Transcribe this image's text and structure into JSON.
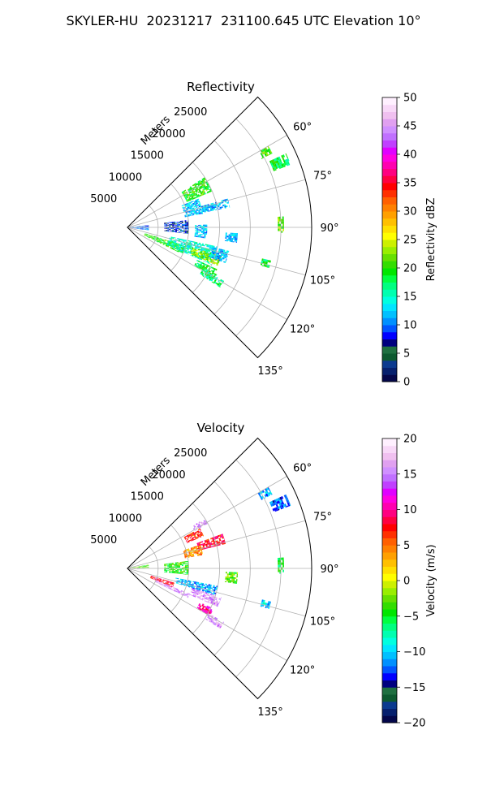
{
  "figure": {
    "suptitle": "SKYLER-HU  20231217  231100.645 UTC Elevation 10°"
  },
  "chart_data": [
    {
      "type": "heatmap",
      "subtype": "polar-sector-radar-ppi",
      "title": "Reflectivity",
      "radial_axis_label": "Meters",
      "radial_ticks": [
        5000,
        10000,
        15000,
        20000,
        25000
      ],
      "radial_tick_labels": [
        "5000",
        "10000",
        "15000",
        "20000",
        "25000"
      ],
      "rlim": [
        0,
        30000
      ],
      "theta_ticks": [
        60,
        75,
        90,
        105,
        120,
        135
      ],
      "theta_tick_labels": [
        "60°",
        "75°",
        "90°",
        "105°",
        "120°",
        "135°"
      ],
      "theta_range": [
        45,
        135
      ],
      "grid": true,
      "colorbar": {
        "label": "Reflectivity dBZ",
        "range": [
          0,
          50
        ],
        "ticks": [
          0,
          5,
          10,
          15,
          20,
          25,
          30,
          35,
          40,
          45,
          50
        ],
        "tick_labels": [
          "0",
          "5",
          "10",
          "15",
          "20",
          "25",
          "30",
          "35",
          "40",
          "45",
          "50"
        ],
        "colors": [
          "#04074a",
          "#06206e",
          "#0b3a8f",
          "#0d5a2f",
          "#1f7040",
          "#00007f",
          "#0000ff",
          "#0055ff",
          "#0090ff",
          "#00c0ff",
          "#00e5ff",
          "#00ffe0",
          "#00ffb0",
          "#00ff80",
          "#00ff40",
          "#00e600",
          "#33dd00",
          "#66e000",
          "#99ee00",
          "#ccf000",
          "#ffff00",
          "#ffe000",
          "#ffc000",
          "#ffa000",
          "#ff8000",
          "#ff6000",
          "#ff3000",
          "#ff0000",
          "#ff0040",
          "#ff0080",
          "#ff00b0",
          "#ff00e0",
          "#e000ff",
          "#c040ff",
          "#c070ff",
          "#d090ff",
          "#e0a0f0",
          "#f0c0f0",
          "#f8d8f8",
          "#fff0ff"
        ]
      },
      "echo_regions": [
        {
          "theta_deg": [
            60,
            63
          ],
          "range_m": [
            24500,
            26500
          ],
          "value": 20
        },
        {
          "theta_deg": [
            65,
            69
          ],
          "range_m": [
            25500,
            28500
          ],
          "value": 18
        },
        {
          "theta_deg": [
            57,
            67
          ],
          "range_m": [
            10500,
            15000
          ],
          "value": 20
        },
        {
          "theta_deg": [
            68,
            80
          ],
          "range_m": [
            9500,
            12500
          ],
          "value": 12
        },
        {
          "theta_deg": [
            74,
            79
          ],
          "range_m": [
            12500,
            17000
          ],
          "value": 12
        },
        {
          "theta_deg": [
            83,
            96
          ],
          "range_m": [
            6000,
            10000
          ],
          "value": 8
        },
        {
          "theta_deg": [
            88,
            98
          ],
          "range_m": [
            11000,
            13000
          ],
          "value": 12
        },
        {
          "theta_deg": [
            93,
            98
          ],
          "range_m": [
            16000,
            18000
          ],
          "value": 12
        },
        {
          "theta_deg": [
            86,
            92
          ],
          "range_m": [
            24500,
            25500
          ],
          "value": 22
        },
        {
          "theta_deg": [
            84,
            98
          ],
          "range_m": [
            0,
            3500
          ],
          "value": 10
        },
        {
          "theta_deg": [
            108,
            116
          ],
          "range_m": [
            3000,
            10000
          ],
          "value": 20
        },
        {
          "theta_deg": [
            102,
            114
          ],
          "range_m": [
            7000,
            15000
          ],
          "value": 15
        },
        {
          "theta_deg": [
            107,
            113
          ],
          "range_m": [
            11000,
            16000
          ],
          "value": 23
        },
        {
          "theta_deg": [
            103,
            110
          ],
          "range_m": [
            14000,
            17000
          ],
          "value": 12
        },
        {
          "theta_deg": [
            115,
            120
          ],
          "range_m": [
            12500,
            16500
          ],
          "value": 18
        },
        {
          "theta_deg": [
            119,
            123
          ],
          "range_m": [
            14000,
            18000
          ],
          "value": 17
        },
        {
          "theta_deg": [
            103,
            106
          ],
          "range_m": [
            22500,
            24000
          ],
          "value": 18
        }
      ]
    },
    {
      "type": "heatmap",
      "subtype": "polar-sector-radar-ppi",
      "title": "Velocity",
      "radial_axis_label": "Meters",
      "radial_ticks": [
        5000,
        10000,
        15000,
        20000,
        25000
      ],
      "radial_tick_labels": [
        "5000",
        "10000",
        "15000",
        "20000",
        "25000"
      ],
      "rlim": [
        0,
        30000
      ],
      "theta_ticks": [
        60,
        75,
        90,
        105,
        120,
        135
      ],
      "theta_tick_labels": [
        "60°",
        "75°",
        "90°",
        "105°",
        "120°",
        "135°"
      ],
      "theta_range": [
        45,
        135
      ],
      "grid": true,
      "colorbar": {
        "label": "Velocity (m/s)",
        "range": [
          -20,
          20
        ],
        "ticks": [
          -20,
          -15,
          -10,
          -5,
          0,
          5,
          10,
          15,
          20
        ],
        "tick_labels": [
          "−20",
          "−15",
          "−10",
          "−5",
          "0",
          "5",
          "10",
          "15",
          "20"
        ],
        "colors": [
          "#04074a",
          "#06206e",
          "#0b3a8f",
          "#0d5a2f",
          "#1f7040",
          "#00007f",
          "#0000ff",
          "#0055ff",
          "#0090ff",
          "#00c0ff",
          "#00e5ff",
          "#00ffe0",
          "#00ffb0",
          "#00ff80",
          "#00ff40",
          "#00e600",
          "#33dd00",
          "#66e000",
          "#99ee00",
          "#ccf000",
          "#ffff00",
          "#ffe000",
          "#ffc000",
          "#ffa000",
          "#ff8000",
          "#ff6000",
          "#ff3000",
          "#ff0000",
          "#ff0040",
          "#ff0080",
          "#ff00b0",
          "#ff00e0",
          "#e000ff",
          "#c040ff",
          "#c070ff",
          "#d090ff",
          "#e0a0f0",
          "#f0c0f0",
          "#f8d8f8",
          "#fff0ff"
        ]
      },
      "echo_regions": [
        {
          "theta_deg": [
            60,
            63
          ],
          "range_m": [
            24500,
            26500
          ],
          "value": -11
        },
        {
          "theta_deg": [
            65,
            69
          ],
          "range_m": [
            25500,
            28500
          ],
          "value": -12
        },
        {
          "theta_deg": [
            57,
            61
          ],
          "range_m": [
            12500,
            15000
          ],
          "value": 16
        },
        {
          "theta_deg": [
            61,
            67
          ],
          "range_m": [
            10500,
            13500
          ],
          "value": 7
        },
        {
          "theta_deg": [
            70,
            76
          ],
          "range_m": [
            12000,
            16500
          ],
          "value": 8
        },
        {
          "theta_deg": [
            72,
            80
          ],
          "range_m": [
            9500,
            12500
          ],
          "value": 4
        },
        {
          "theta_deg": [
            83,
            96
          ],
          "range_m": [
            6000,
            10000
          ],
          "value": -4
        },
        {
          "theta_deg": [
            92,
            98
          ],
          "range_m": [
            16000,
            18000
          ],
          "value": -3
        },
        {
          "theta_deg": [
            86,
            92
          ],
          "range_m": [
            24500,
            25500
          ],
          "value": -5
        },
        {
          "theta_deg": [
            80,
            88
          ],
          "range_m": [
            0,
            3500
          ],
          "value": -3
        },
        {
          "theta_deg": [
            89,
            96
          ],
          "range_m": [
            0,
            2000
          ],
          "value": 17
        },
        {
          "theta_deg": [
            107,
            113
          ],
          "range_m": [
            4000,
            8000
          ],
          "value": 8
        },
        {
          "theta_deg": [
            112,
            116
          ],
          "range_m": [
            5000,
            11000
          ],
          "value": 16
        },
        {
          "theta_deg": [
            101,
            107
          ],
          "range_m": [
            8000,
            15000
          ],
          "value": -11
        },
        {
          "theta_deg": [
            107,
            113
          ],
          "range_m": [
            11000,
            16000
          ],
          "value": 16
        },
        {
          "theta_deg": [
            115,
            120
          ],
          "range_m": [
            13000,
            15500
          ],
          "value": 10
        },
        {
          "theta_deg": [
            119,
            123
          ],
          "range_m": [
            15000,
            18000
          ],
          "value": 16
        },
        {
          "theta_deg": [
            103,
            106
          ],
          "range_m": [
            22500,
            24000
          ],
          "value": -10
        }
      ]
    }
  ]
}
